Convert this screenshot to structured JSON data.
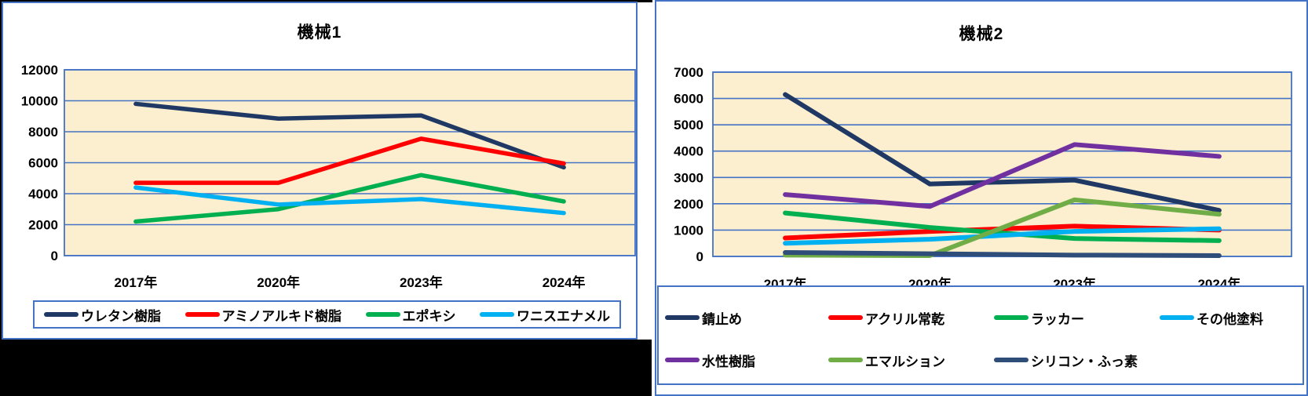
{
  "page": {
    "background": "#FFFFFF",
    "frame_color": "#4472C4",
    "masked_region_color": "#000000"
  },
  "chart_data": [
    {
      "type": "line",
      "title": "機械1",
      "categories": [
        "2017年",
        "2020年",
        "2023年",
        "2024年"
      ],
      "ylim": [
        0,
        12000
      ],
      "ytick_step": 2000,
      "yticks": [
        "12000",
        "10000",
        "8000",
        "6000",
        "4000",
        "2000",
        "0"
      ],
      "grid": "on",
      "legend_position": "bottom",
      "plot_bg_color": "#FCEFCF",
      "grid_color": "#4472C4",
      "border_color": "#4472C4",
      "series": [
        {
          "name": "ウレタン樹脂",
          "color": "#1F3864",
          "values": [
            9800,
            8850,
            9050,
            5700
          ]
        },
        {
          "name": "アミノアルキド樹脂",
          "color": "#FF0000",
          "values": [
            4700,
            4700,
            7550,
            5950
          ]
        },
        {
          "name": "エポキシ",
          "color": "#00B050",
          "values": [
            2200,
            3000,
            5200,
            3500
          ]
        },
        {
          "name": "ワニスエナメル",
          "color": "#00B0F0",
          "values": [
            4400,
            3300,
            3650,
            2750
          ]
        }
      ]
    },
    {
      "type": "line",
      "title": "機械2",
      "categories": [
        "2017年",
        "2020年",
        "2023年",
        "2024年"
      ],
      "ylim": [
        0,
        7000
      ],
      "ytick_step": 1000,
      "yticks": [
        "7000",
        "6000",
        "5000",
        "4000",
        "3000",
        "2000",
        "1000",
        "0"
      ],
      "grid": "on",
      "legend_position": "bottom",
      "plot_bg_color": "#FCEFCF",
      "grid_color": "#4472C4",
      "border_color": "#4472C4",
      "series": [
        {
          "name": "錆止め",
          "color": "#1F3864",
          "values": [
            6150,
            2750,
            2900,
            1750
          ]
        },
        {
          "name": "アクリル常乾",
          "color": "#FF0000",
          "values": [
            700,
            950,
            1150,
            1000
          ]
        },
        {
          "name": "ラッカー",
          "color": "#00B050",
          "values": [
            1650,
            1100,
            680,
            600
          ]
        },
        {
          "name": "その他塗料",
          "color": "#00B0F0",
          "values": [
            500,
            650,
            950,
            1050
          ]
        },
        {
          "name": "水性樹脂",
          "color": "#7030A0",
          "values": [
            2350,
            1900,
            4250,
            3800
          ]
        },
        {
          "name": "エマルション",
          "color": "#70AD47",
          "values": [
            50,
            30,
            2150,
            1600
          ]
        },
        {
          "name": "シリコン・ふっ素",
          "color": "#2E4E79",
          "values": [
            150,
            100,
            50,
            30
          ]
        }
      ]
    }
  ]
}
